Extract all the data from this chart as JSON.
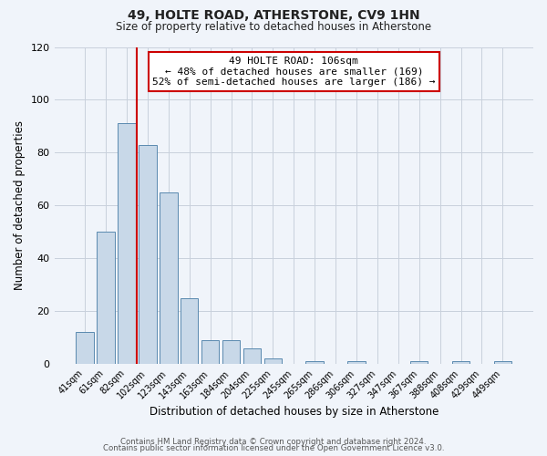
{
  "title": "49, HOLTE ROAD, ATHERSTONE, CV9 1HN",
  "subtitle": "Size of property relative to detached houses in Atherstone",
  "xlabel": "Distribution of detached houses by size in Atherstone",
  "ylabel": "Number of detached properties",
  "bar_labels": [
    "41sqm",
    "61sqm",
    "82sqm",
    "102sqm",
    "123sqm",
    "143sqm",
    "163sqm",
    "184sqm",
    "204sqm",
    "225sqm",
    "245sqm",
    "265sqm",
    "286sqm",
    "306sqm",
    "327sqm",
    "347sqm",
    "367sqm",
    "388sqm",
    "408sqm",
    "429sqm",
    "449sqm"
  ],
  "bar_heights": [
    12,
    50,
    91,
    83,
    65,
    25,
    9,
    9,
    6,
    2,
    0,
    1,
    0,
    1,
    0,
    0,
    1,
    0,
    1,
    0,
    1
  ],
  "bar_color": "#c8d8e8",
  "bar_edge_color": "#5a8ab0",
  "vline_x": 3.0,
  "vline_color": "#cc0000",
  "annotation_title": "49 HOLTE ROAD: 106sqm",
  "annotation_line1": "← 48% of detached houses are smaller (169)",
  "annotation_line2": "52% of semi-detached houses are larger (186) →",
  "annotation_box_color": "#ffffff",
  "annotation_box_edge": "#cc0000",
  "ylim": [
    0,
    120
  ],
  "yticks": [
    0,
    20,
    40,
    60,
    80,
    100,
    120
  ],
  "footer1": "Contains HM Land Registry data © Crown copyright and database right 2024.",
  "footer2": "Contains public sector information licensed under the Open Government Licence v3.0.",
  "background_color": "#f0f4fa",
  "grid_color": "#c8d0dc"
}
